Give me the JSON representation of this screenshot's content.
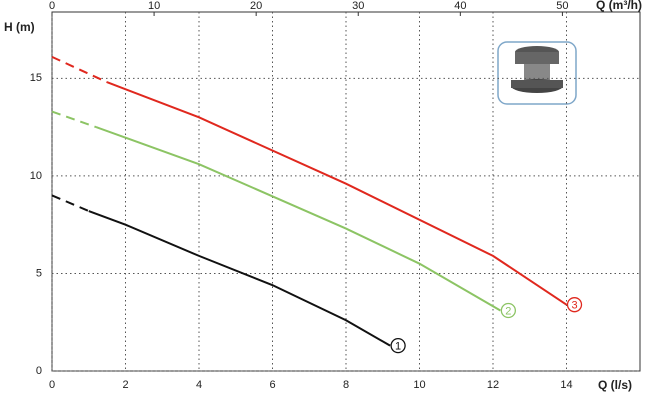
{
  "chart_data": {
    "type": "line",
    "y_label": "H (m)",
    "x_label": "Q (l/s)",
    "x2_label": "Q (m³/h)",
    "xlim": [
      0,
      16
    ],
    "xticks": [
      0,
      2,
      4,
      6,
      8,
      10,
      12,
      14
    ],
    "x2lim": [
      0,
      57.6
    ],
    "x2ticks": [
      0,
      10,
      20,
      30,
      40,
      50
    ],
    "ylim": [
      0,
      18.4
    ],
    "yticks": [
      0,
      5,
      10,
      15
    ],
    "grid": true,
    "series": [
      {
        "name": "1",
        "color": "#111111",
        "dash_until_x": 1,
        "x": [
          0,
          1,
          2,
          4,
          6,
          8,
          9.2
        ],
        "values": [
          9.0,
          8.2,
          7.5,
          5.9,
          4.4,
          2.6,
          1.3
        ]
      },
      {
        "name": "2",
        "color": "#8cc464",
        "dash_until_x": 1.2,
        "x": [
          0,
          1.2,
          4,
          8,
          10,
          12.2
        ],
        "values": [
          13.3,
          12.5,
          10.6,
          7.3,
          5.5,
          3.1
        ]
      },
      {
        "name": "3",
        "color": "#e0281e",
        "dash_until_x": 1.5,
        "x": [
          0,
          1.5,
          4,
          8,
          12,
          14.0
        ],
        "values": [
          16.1,
          14.8,
          13.0,
          9.6,
          5.9,
          3.4
        ]
      }
    ]
  }
}
